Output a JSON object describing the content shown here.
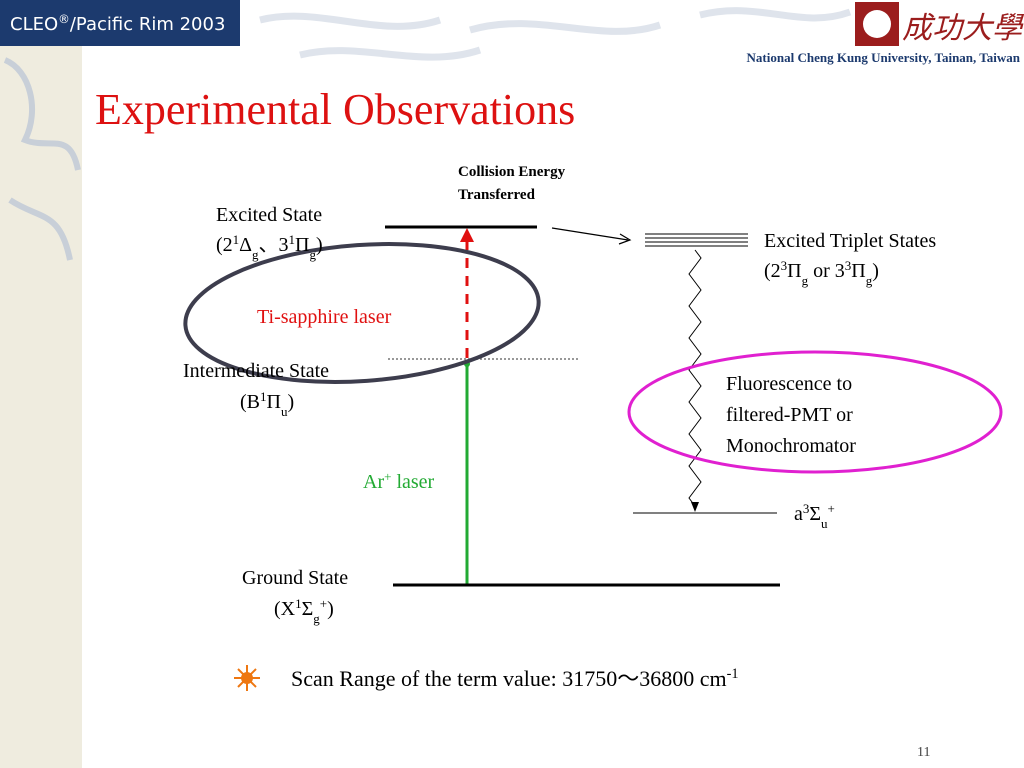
{
  "header": {
    "conference": [
      {
        "t": "CLEO"
      },
      {
        "sup": "®"
      },
      {
        "t": "/Pacific Rim 2003"
      }
    ],
    "logo_text": "成功大學",
    "university": "National Cheng Kung University, Tainan, Taiwan"
  },
  "title": "Experimental Observations",
  "diagram": {
    "collision": [
      "Collision Energy",
      "Transferred"
    ],
    "excited_state": {
      "name": "Excited State",
      "notation": [
        {
          "t": "(2"
        },
        {
          "sup": "1"
        },
        {
          "t": "Δ"
        },
        {
          "sub": "g"
        },
        {
          "t": "、3"
        },
        {
          "sup": "1"
        },
        {
          "t": "Π"
        },
        {
          "sub": "g"
        },
        {
          "t": ")"
        }
      ]
    },
    "triplet_states": {
      "name": "Excited Triplet States",
      "notation": [
        {
          "t": "(2"
        },
        {
          "sup": "3"
        },
        {
          "t": "Π"
        },
        {
          "sub": "g"
        },
        {
          "t": " or 3"
        },
        {
          "sup": "3"
        },
        {
          "t": "Π"
        },
        {
          "sub": "g"
        },
        {
          "t": ")"
        }
      ]
    },
    "ti_sapphire": "Ti-sapphire laser",
    "intermediate_state": {
      "name": "Intermediate State",
      "notation": [
        {
          "t": "(B"
        },
        {
          "sup": "1"
        },
        {
          "t": "Π"
        },
        {
          "sub": "u"
        },
        {
          "t": ")"
        }
      ]
    },
    "fluorescence": [
      "Fluorescence to",
      "filtered-PMT or",
      "Monochromator"
    ],
    "ar_laser": [
      {
        "t": "Ar"
      },
      {
        "sup": "+"
      },
      {
        "t": " laser"
      }
    ],
    "a_state": [
      {
        "t": "a"
      },
      {
        "sup": "3"
      },
      {
        "t": "Σ"
      },
      {
        "sub": "u"
      },
      {
        "sup": "+"
      }
    ],
    "ground_state": {
      "name": "Ground State",
      "notation": [
        {
          "t": "(X"
        },
        {
          "sup": "1"
        },
        {
          "t": "Σ"
        },
        {
          "sub": "g"
        },
        {
          "sup": "+"
        },
        {
          "t": ")"
        }
      ]
    }
  },
  "footer": {
    "scan_range": [
      {
        "t": "Scan Range of the term value: 31750～36800 cm"
      },
      {
        "sup": "-1"
      }
    ],
    "page_number": "11"
  }
}
